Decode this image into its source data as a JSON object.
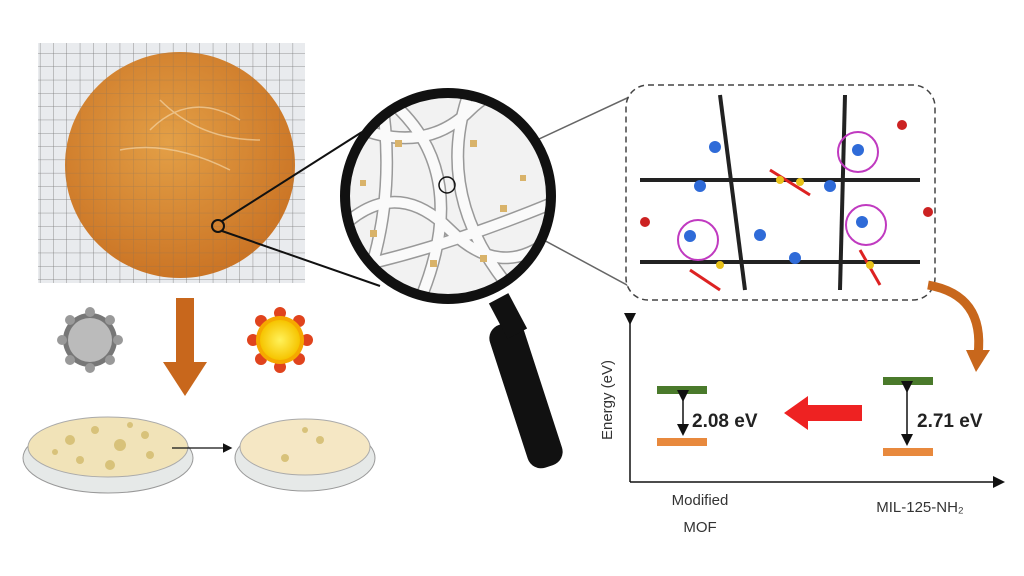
{
  "energy_diagram": {
    "axis_label": "Energy (eV)",
    "left": {
      "gap_label": "2.08 eV",
      "name_lines": [
        "Modified",
        "MOF"
      ]
    },
    "right": {
      "gap_label": "2.71 eV",
      "name": "MIL-125-NH₂"
    }
  }
}
